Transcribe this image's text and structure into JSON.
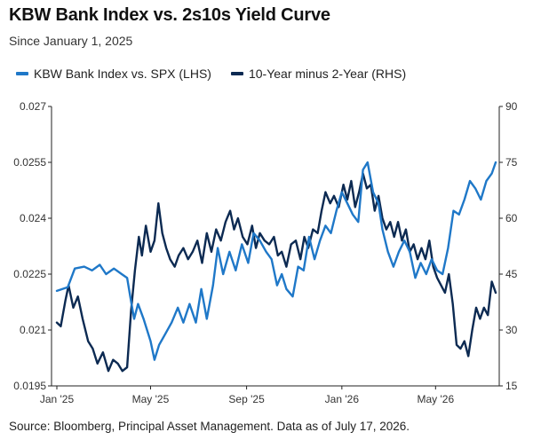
{
  "header": {
    "title": "KBW Bank Index vs. 2s10s Yield Curve",
    "subtitle": "Since January 1, 2025"
  },
  "footer": {
    "source": "Source: Bloomberg, Principal Asset Management. Data as of July 17, 2026."
  },
  "colors": {
    "kbw": "#1f78c8",
    "curve": "#0c2a52",
    "axis": "#222222",
    "tick_text": "#333333"
  },
  "chart_data": {
    "type": "line",
    "title": "KBW Bank Index vs. 2s10s Yield Curve",
    "subtitle": "Since January 1, 2025",
    "legend_position": "top-left",
    "grid": false,
    "x_axis": {
      "start": "2025-01-01",
      "end": "2026-07-17",
      "tick_labels": [
        "Jan '25",
        "May '25",
        "Sep '25",
        "Jan '26",
        "May '26"
      ],
      "tick_dates": [
        "2025-01-01",
        "2025-05-01",
        "2025-09-01",
        "2026-01-01",
        "2026-05-01"
      ]
    },
    "y_left": {
      "label": "",
      "ylim": [
        0.0195,
        0.027
      ],
      "ticks": [
        "0.0195",
        "0.021",
        "0.0225",
        "0.024",
        "0.0255",
        "0.027"
      ]
    },
    "y_right": {
      "label": "",
      "ylim": [
        15,
        90
      ],
      "ticks": [
        "15",
        "30",
        "45",
        "60",
        "75",
        "90"
      ]
    },
    "series": [
      {
        "name": "KBW Bank Index vs. SPX (LHS)",
        "axis": "left",
        "color": "#1f78c8",
        "points": [
          [
            "2025-01-01",
            0.02205
          ],
          [
            "2025-01-15",
            0.02215
          ],
          [
            "2025-01-24",
            0.02265
          ],
          [
            "2025-02-05",
            0.0227
          ],
          [
            "2025-02-15",
            0.0226
          ],
          [
            "2025-02-25",
            0.02275
          ],
          [
            "2025-03-05",
            0.0225
          ],
          [
            "2025-03-15",
            0.02265
          ],
          [
            "2025-03-25",
            0.0225
          ],
          [
            "2025-04-01",
            0.0224
          ],
          [
            "2025-04-05",
            0.0219
          ],
          [
            "2025-04-10",
            0.0213
          ],
          [
            "2025-04-15",
            0.0217
          ],
          [
            "2025-04-22",
            0.0213
          ],
          [
            "2025-05-01",
            0.0207
          ],
          [
            "2025-05-06",
            0.0202
          ],
          [
            "2025-05-12",
            0.0206
          ],
          [
            "2025-05-20",
            0.0209
          ],
          [
            "2025-05-28",
            0.0212
          ],
          [
            "2025-06-05",
            0.0216
          ],
          [
            "2025-06-12",
            0.0212
          ],
          [
            "2025-06-20",
            0.0217
          ],
          [
            "2025-06-28",
            0.0212
          ],
          [
            "2025-07-05",
            0.0221
          ],
          [
            "2025-07-12",
            0.0213
          ],
          [
            "2025-07-20",
            0.0222
          ],
          [
            "2025-07-26",
            0.0232
          ],
          [
            "2025-08-02",
            0.0225
          ],
          [
            "2025-08-10",
            0.0231
          ],
          [
            "2025-08-18",
            0.0226
          ],
          [
            "2025-08-26",
            0.0233
          ],
          [
            "2025-09-03",
            0.0228
          ],
          [
            "2025-09-10",
            0.0236
          ],
          [
            "2025-09-18",
            0.0234
          ],
          [
            "2025-09-26",
            0.0231
          ],
          [
            "2025-10-03",
            0.0229
          ],
          [
            "2025-10-10",
            0.0222
          ],
          [
            "2025-10-16",
            0.0225
          ],
          [
            "2025-10-22",
            0.0221
          ],
          [
            "2025-10-30",
            0.0219
          ],
          [
            "2025-11-06",
            0.0227
          ],
          [
            "2025-11-13",
            0.0226
          ],
          [
            "2025-11-20",
            0.0235
          ],
          [
            "2025-11-27",
            0.0229
          ],
          [
            "2025-12-04",
            0.0234
          ],
          [
            "2025-12-11",
            0.0238
          ],
          [
            "2025-12-18",
            0.0236
          ],
          [
            "2025-12-25",
            0.0242
          ],
          [
            "2026-01-01",
            0.0247
          ],
          [
            "2026-01-08",
            0.0244
          ],
          [
            "2026-01-15",
            0.0241
          ],
          [
            "2026-01-22",
            0.0239
          ],
          [
            "2026-01-28",
            0.0253
          ],
          [
            "2026-02-03",
            0.0255
          ],
          [
            "2026-02-10",
            0.0247
          ],
          [
            "2026-02-17",
            0.0244
          ],
          [
            "2026-02-22",
            0.0237
          ],
          [
            "2026-03-01",
            0.0231
          ],
          [
            "2026-03-08",
            0.0227
          ],
          [
            "2026-03-15",
            0.0231
          ],
          [
            "2026-03-22",
            0.0234
          ],
          [
            "2026-03-29",
            0.0231
          ],
          [
            "2026-04-05",
            0.0224
          ],
          [
            "2026-04-12",
            0.0228
          ],
          [
            "2026-04-19",
            0.0225
          ],
          [
            "2026-04-26",
            0.0229
          ],
          [
            "2026-05-03",
            0.0226
          ],
          [
            "2026-05-10",
            0.0225
          ],
          [
            "2026-05-17",
            0.0232
          ],
          [
            "2026-05-24",
            0.0242
          ],
          [
            "2026-05-31",
            0.0241
          ],
          [
            "2026-06-07",
            0.0245
          ],
          [
            "2026-06-14",
            0.025
          ],
          [
            "2026-06-21",
            0.0248
          ],
          [
            "2026-06-28",
            0.0245
          ],
          [
            "2026-07-05",
            0.025
          ],
          [
            "2026-07-12",
            0.0252
          ],
          [
            "2026-07-17",
            0.0255
          ]
        ]
      },
      {
        "name": "10-Year minus 2-Year (RHS)",
        "axis": "right",
        "color": "#0c2a52",
        "points": [
          [
            "2025-01-01",
            32
          ],
          [
            "2025-01-06",
            31
          ],
          [
            "2025-01-12",
            38
          ],
          [
            "2025-01-16",
            42
          ],
          [
            "2025-01-22",
            36
          ],
          [
            "2025-01-28",
            39
          ],
          [
            "2025-02-03",
            33
          ],
          [
            "2025-02-10",
            27
          ],
          [
            "2025-02-16",
            25
          ],
          [
            "2025-02-22",
            21
          ],
          [
            "2025-03-01",
            24
          ],
          [
            "2025-03-08",
            19
          ],
          [
            "2025-03-14",
            22
          ],
          [
            "2025-03-20",
            21
          ],
          [
            "2025-03-26",
            19
          ],
          [
            "2025-04-01",
            20
          ],
          [
            "2025-04-06",
            35
          ],
          [
            "2025-04-11",
            46
          ],
          [
            "2025-04-16",
            55
          ],
          [
            "2025-04-20",
            50
          ],
          [
            "2025-04-25",
            58
          ],
          [
            "2025-05-01",
            51
          ],
          [
            "2025-05-06",
            54
          ],
          [
            "2025-05-11",
            64
          ],
          [
            "2025-05-16",
            56
          ],
          [
            "2025-05-21",
            52
          ],
          [
            "2025-05-26",
            49
          ],
          [
            "2025-06-01",
            47
          ],
          [
            "2025-06-06",
            50
          ],
          [
            "2025-06-12",
            52
          ],
          [
            "2025-06-18",
            49
          ],
          [
            "2025-06-24",
            51
          ],
          [
            "2025-06-30",
            54
          ],
          [
            "2025-07-06",
            48
          ],
          [
            "2025-07-12",
            56
          ],
          [
            "2025-07-18",
            51
          ],
          [
            "2025-07-24",
            57
          ],
          [
            "2025-07-30",
            54
          ],
          [
            "2025-08-05",
            59
          ],
          [
            "2025-08-11",
            62
          ],
          [
            "2025-08-16",
            57
          ],
          [
            "2025-08-21",
            60
          ],
          [
            "2025-08-27",
            55
          ],
          [
            "2025-09-02",
            53
          ],
          [
            "2025-09-08",
            58
          ],
          [
            "2025-09-13",
            52
          ],
          [
            "2025-09-18",
            56
          ],
          [
            "2025-09-24",
            54
          ],
          [
            "2025-09-30",
            53
          ],
          [
            "2025-10-06",
            55
          ],
          [
            "2025-10-11",
            50
          ],
          [
            "2025-10-16",
            51
          ],
          [
            "2025-10-22",
            47
          ],
          [
            "2025-10-28",
            53
          ],
          [
            "2025-11-03",
            54
          ],
          [
            "2025-11-09",
            49
          ],
          [
            "2025-11-14",
            55
          ],
          [
            "2025-11-19",
            52
          ],
          [
            "2025-11-25",
            57
          ],
          [
            "2025-12-01",
            56
          ],
          [
            "2025-12-06",
            62
          ],
          [
            "2025-12-11",
            67
          ],
          [
            "2025-12-17",
            64
          ],
          [
            "2025-12-22",
            66
          ],
          [
            "2025-12-28",
            63
          ],
          [
            "2026-01-03",
            69
          ],
          [
            "2026-01-08",
            65
          ],
          [
            "2026-01-13",
            70
          ],
          [
            "2026-01-18",
            63
          ],
          [
            "2026-01-23",
            67
          ],
          [
            "2026-01-28",
            72
          ],
          [
            "2026-02-02",
            68
          ],
          [
            "2026-02-07",
            69
          ],
          [
            "2026-02-12",
            62
          ],
          [
            "2026-02-17",
            66
          ],
          [
            "2026-02-22",
            60
          ],
          [
            "2026-02-27",
            57
          ],
          [
            "2026-03-04",
            59
          ],
          [
            "2026-03-09",
            55
          ],
          [
            "2026-03-14",
            59
          ],
          [
            "2026-03-19",
            54
          ],
          [
            "2026-03-24",
            57
          ],
          [
            "2026-03-29",
            51
          ],
          [
            "2026-04-03",
            53
          ],
          [
            "2026-04-08",
            49
          ],
          [
            "2026-04-13",
            52
          ],
          [
            "2026-04-18",
            49
          ],
          [
            "2026-04-23",
            54
          ],
          [
            "2026-04-28",
            47
          ],
          [
            "2026-05-03",
            44
          ],
          [
            "2026-05-08",
            42
          ],
          [
            "2026-05-13",
            40
          ],
          [
            "2026-05-18",
            45
          ],
          [
            "2026-05-23",
            37
          ],
          [
            "2026-05-28",
            26
          ],
          [
            "2026-06-02",
            25
          ],
          [
            "2026-06-07",
            27
          ],
          [
            "2026-06-12",
            23
          ],
          [
            "2026-06-17",
            30
          ],
          [
            "2026-06-22",
            36
          ],
          [
            "2026-06-27",
            33
          ],
          [
            "2026-07-02",
            36
          ],
          [
            "2026-07-07",
            34
          ],
          [
            "2026-07-12",
            43
          ],
          [
            "2026-07-17",
            40
          ]
        ]
      }
    ]
  }
}
